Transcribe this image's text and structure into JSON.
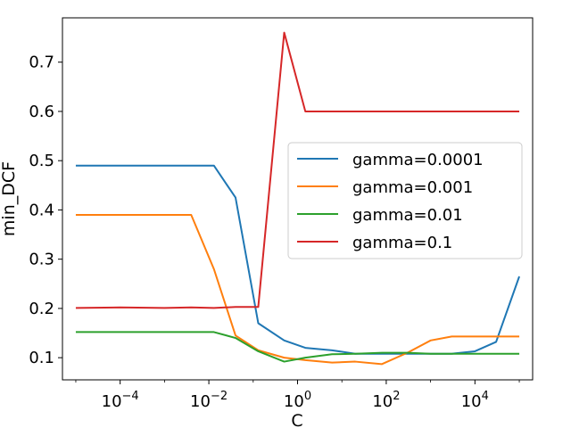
{
  "chart_data": {
    "type": "line",
    "title": "",
    "xlabel": "C",
    "ylabel": "min_DCF",
    "xscale": "log",
    "xlim": [
      5e-06,
      200000.0
    ],
    "ylim": [
      0.055,
      0.79
    ],
    "grid": false,
    "legend_position": "center-right",
    "x": [
      1e-05,
      0.0001,
      0.001,
      0.004,
      0.013,
      0.04,
      0.13,
      0.5,
      1.5,
      6,
      20,
      80,
      300,
      1000,
      3000,
      10000,
      30000,
      100000
    ],
    "yticks": [
      0.1,
      0.2,
      0.3,
      0.4,
      0.5,
      0.6,
      0.7
    ],
    "ytick_labels": [
      "0.1",
      "0.2",
      "0.3",
      "0.4",
      "0.5",
      "0.6",
      "0.7"
    ],
    "xticks": [
      0.0001,
      0.01,
      1,
      100,
      10000
    ],
    "xtick_labels": [
      {
        "base": "10",
        "exp": "−4"
      },
      {
        "base": "10",
        "exp": "−2"
      },
      {
        "base": "10",
        "exp": "0"
      },
      {
        "base": "10",
        "exp": "2"
      },
      {
        "base": "10",
        "exp": "4"
      }
    ],
    "series": [
      {
        "name": "gamma=0.0001",
        "color": "#1f77b4",
        "values": [
          0.49,
          0.49,
          0.49,
          0.49,
          0.49,
          0.425,
          0.17,
          0.135,
          0.12,
          0.115,
          0.108,
          0.108,
          0.108,
          0.108,
          0.108,
          0.113,
          0.132,
          0.265
        ]
      },
      {
        "name": "gamma=0.001",
        "color": "#ff7f0e",
        "values": [
          0.39,
          0.39,
          0.39,
          0.39,
          0.28,
          0.145,
          0.115,
          0.1,
          0.095,
          0.09,
          0.092,
          0.087,
          0.11,
          0.135,
          0.143,
          0.143,
          0.143,
          0.143
        ]
      },
      {
        "name": "gamma=0.01",
        "color": "#2ca02c",
        "values": [
          0.152,
          0.152,
          0.152,
          0.152,
          0.152,
          0.14,
          0.113,
          0.092,
          0.1,
          0.107,
          0.108,
          0.11,
          0.11,
          0.108,
          0.108,
          0.108,
          0.108,
          0.108
        ]
      },
      {
        "name": "gamma=0.1",
        "color": "#d62728",
        "values": [
          0.201,
          0.202,
          0.201,
          0.202,
          0.201,
          0.203,
          0.203,
          0.76,
          0.6,
          0.6,
          0.6,
          0.6,
          0.6,
          0.6,
          0.6,
          0.6,
          0.6,
          0.6
        ]
      }
    ]
  }
}
